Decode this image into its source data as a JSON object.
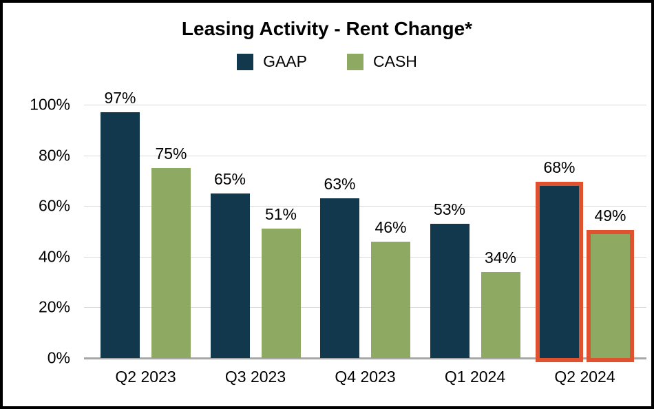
{
  "title": "Leasing Activity - Rent Change*",
  "legend": {
    "items": [
      {
        "label": "GAAP",
        "color": "#12384e"
      },
      {
        "label": "CASH",
        "color": "#8ea962"
      }
    ]
  },
  "colors": {
    "gaap": "#12384e",
    "cash": "#8ea962",
    "highlight_outline": "#e0522f",
    "gridline": "#d9d9d9",
    "baseline": "#a6a6a6",
    "frame_border": "#000000",
    "background": "#ffffff"
  },
  "chart_data": {
    "type": "bar",
    "title": "Leasing Activity - Rent Change*",
    "categories": [
      "Q2 2023",
      "Q3 2023",
      "Q4 2023",
      "Q1 2024",
      "Q2 2024"
    ],
    "series": [
      {
        "name": "GAAP",
        "color": "#12384e",
        "values": [
          97,
          65,
          63,
          53,
          68
        ],
        "labels": [
          "97%",
          "65%",
          "63%",
          "53%",
          "68%"
        ]
      },
      {
        "name": "CASH",
        "color": "#8ea962",
        "values": [
          75,
          51,
          46,
          34,
          49
        ],
        "labels": [
          "75%",
          "51%",
          "46%",
          "34%",
          "49%"
        ]
      }
    ],
    "highlight": {
      "category": "Q2 2024",
      "outline_color": "#e0522f"
    },
    "xlabel": "",
    "ylabel": "",
    "ylim": [
      0,
      100
    ],
    "y_ticks": [
      {
        "v": 0,
        "label": "0%"
      },
      {
        "v": 20,
        "label": "20%"
      },
      {
        "v": 40,
        "label": "40%"
      },
      {
        "v": 60,
        "label": "60%"
      },
      {
        "v": 80,
        "label": "80%"
      },
      {
        "v": 100,
        "label": "100%"
      }
    ],
    "grid": true,
    "legend_position": "top"
  }
}
